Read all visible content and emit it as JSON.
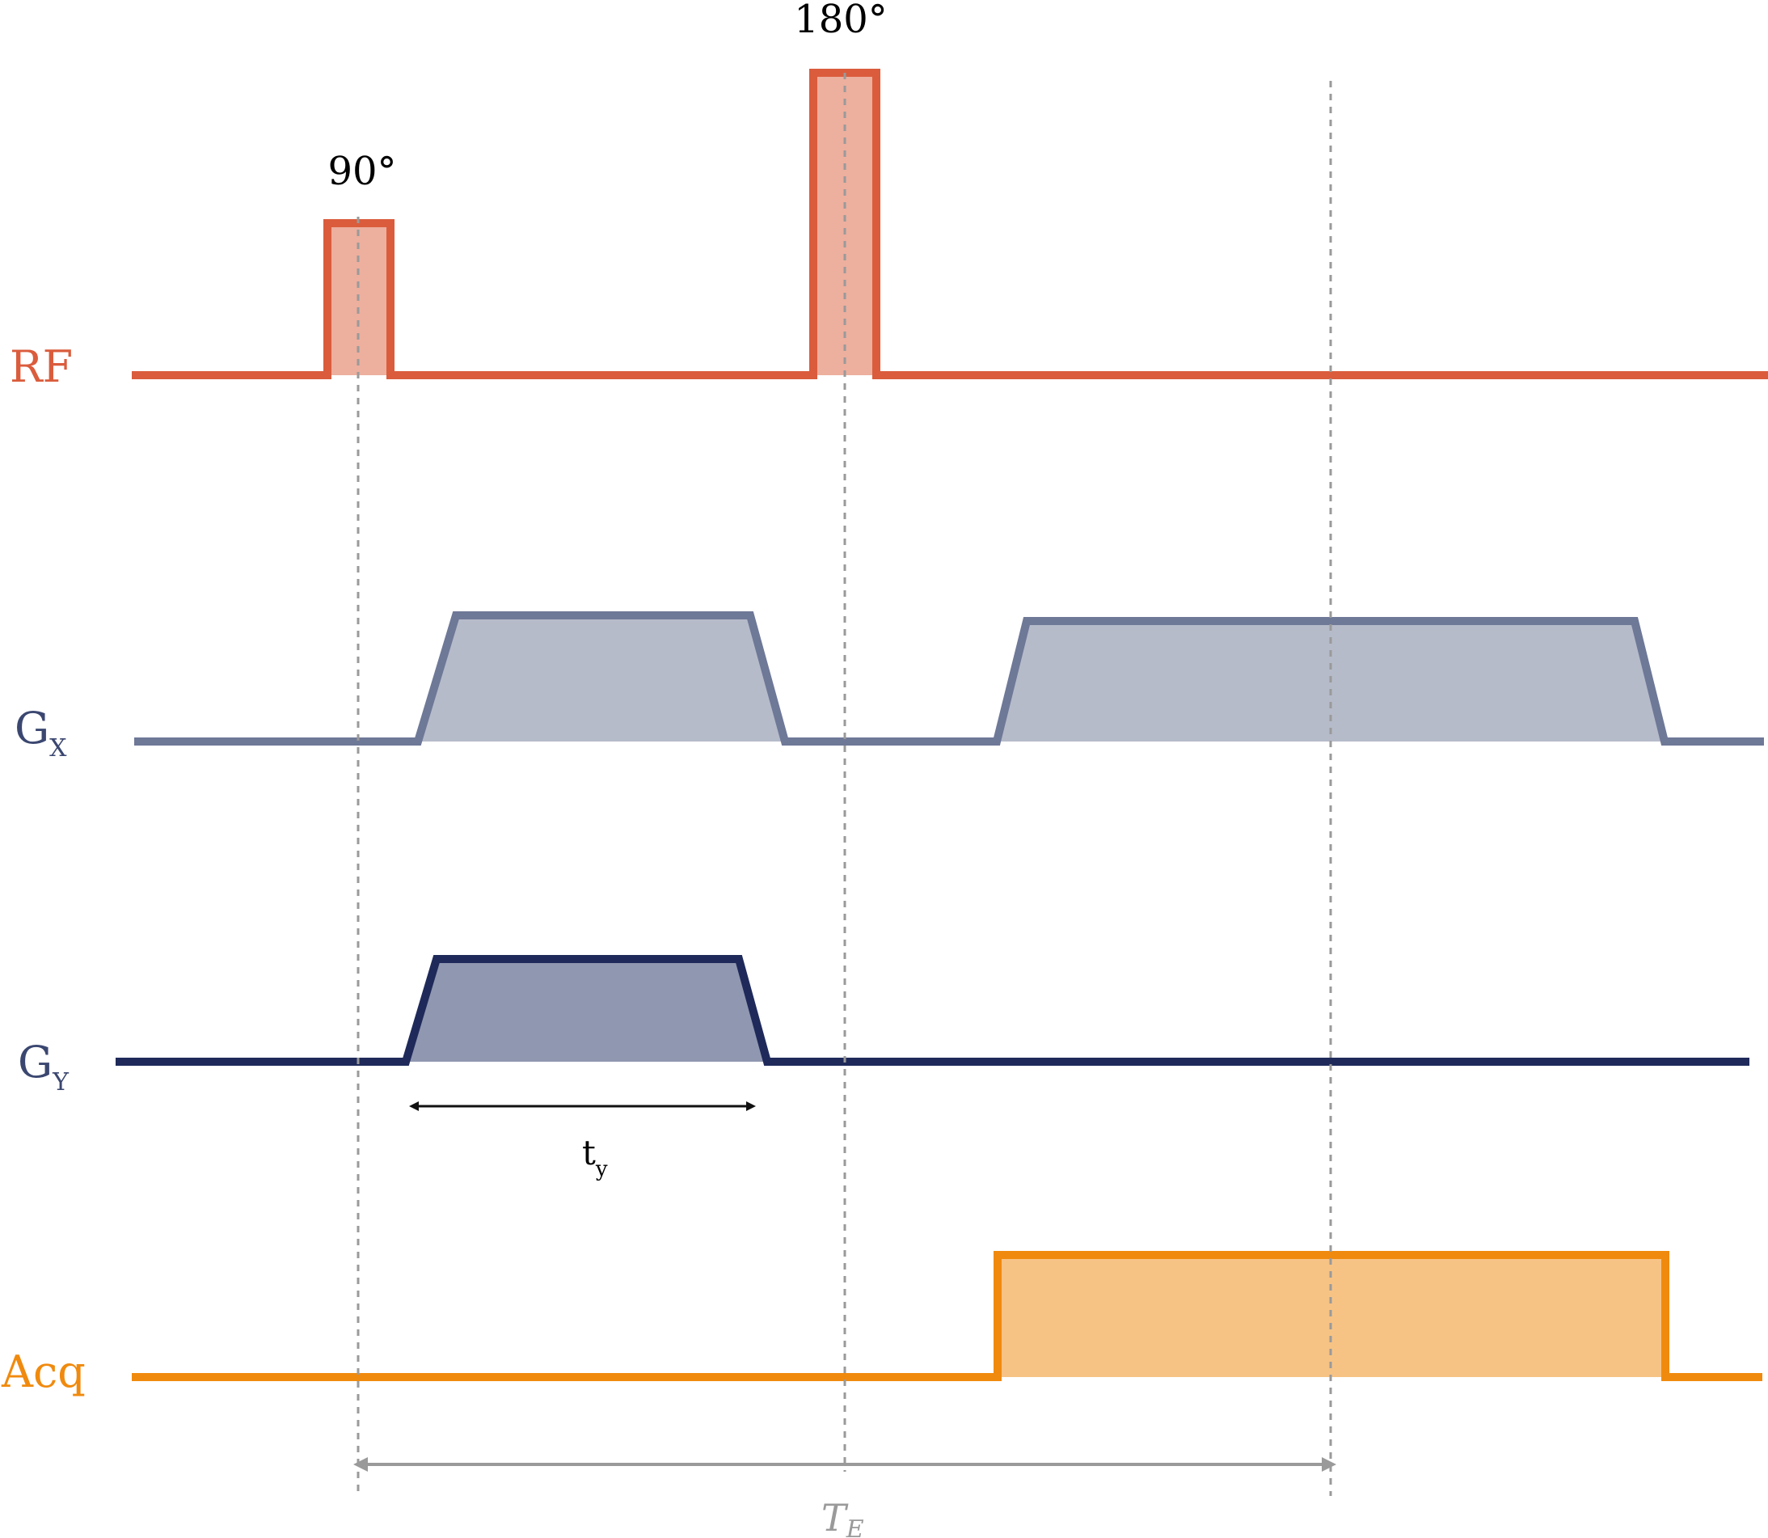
{
  "pulses": {
    "rf_90": "90°",
    "rf_180": "180°"
  },
  "rows": {
    "rf": {
      "label": "RF"
    },
    "gx": {
      "label": "G",
      "sub": "X"
    },
    "gy": {
      "label": "G",
      "sub": "Y"
    },
    "acq": {
      "label": "Acq"
    }
  },
  "intervals": {
    "ty": {
      "label": "t",
      "sub": "y"
    },
    "te": {
      "label": "T",
      "sub": "E"
    }
  },
  "colors": {
    "rf": "#da5c3c",
    "rf_fill": "#edaf9e",
    "gx": "#6e7897",
    "gx_fill": "#b6bbca",
    "gy": "#1f2a5a",
    "gy_fill": "#9097b0",
    "acq": "#f08a0e",
    "acq_fill": "#f7c385",
    "guide": "#9a9a9a",
    "ty_arrow": "#111111"
  }
}
